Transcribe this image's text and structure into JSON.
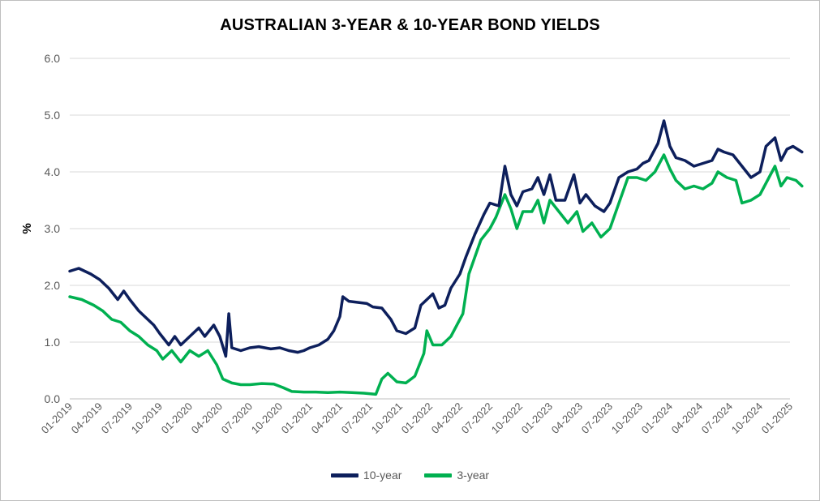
{
  "chart_data": {
    "type": "line",
    "title": "AUSTRALIAN 3-YEAR & 10-YEAR BOND YIELDS",
    "xlabel": "",
    "ylabel": "%",
    "ylim": [
      0,
      6
    ],
    "yticks": [
      "0.0",
      "1.0",
      "2.0",
      "3.0",
      "4.0",
      "5.0",
      "6.0"
    ],
    "xticks": [
      "01-2019",
      "04-2019",
      "07-2019",
      "10-2019",
      "01-2020",
      "04-2020",
      "07-2020",
      "10-2020",
      "01-2021",
      "04-2021",
      "07-2021",
      "10-2021",
      "01-2022",
      "04-2022",
      "07-2022",
      "10-2022",
      "01-2023",
      "04-2023",
      "07-2023",
      "10-2023",
      "01-2024",
      "04-2024",
      "07-2024",
      "10-2024",
      "01-2025"
    ],
    "grid": true,
    "legend_position": "bottom",
    "x_index_note": "",
    "series": [
      {
        "name": "10-year",
        "color": "#0d1f5c",
        "points": [
          [
            0,
            2.25
          ],
          [
            0.3,
            2.3
          ],
          [
            0.7,
            2.2
          ],
          [
            1,
            2.1
          ],
          [
            1.3,
            1.95
          ],
          [
            1.6,
            1.75
          ],
          [
            1.8,
            1.9
          ],
          [
            2,
            1.75
          ],
          [
            2.3,
            1.55
          ],
          [
            2.6,
            1.4
          ],
          [
            2.8,
            1.3
          ],
          [
            3,
            1.15
          ],
          [
            3.3,
            0.95
          ],
          [
            3.5,
            1.1
          ],
          [
            3.7,
            0.95
          ],
          [
            4,
            1.1
          ],
          [
            4.3,
            1.25
          ],
          [
            4.5,
            1.1
          ],
          [
            4.8,
            1.3
          ],
          [
            5,
            1.1
          ],
          [
            5.2,
            0.75
          ],
          [
            5.3,
            1.5
          ],
          [
            5.4,
            0.9
          ],
          [
            5.7,
            0.85
          ],
          [
            6,
            0.9
          ],
          [
            6.3,
            0.92
          ],
          [
            6.7,
            0.88
          ],
          [
            7,
            0.9
          ],
          [
            7.3,
            0.85
          ],
          [
            7.6,
            0.82
          ],
          [
            7.8,
            0.85
          ],
          [
            8,
            0.9
          ],
          [
            8.3,
            0.95
          ],
          [
            8.6,
            1.05
          ],
          [
            8.8,
            1.2
          ],
          [
            9,
            1.45
          ],
          [
            9.1,
            1.8
          ],
          [
            9.3,
            1.72
          ],
          [
            9.6,
            1.7
          ],
          [
            9.9,
            1.68
          ],
          [
            10.1,
            1.62
          ],
          [
            10.4,
            1.6
          ],
          [
            10.7,
            1.4
          ],
          [
            10.9,
            1.2
          ],
          [
            11.2,
            1.15
          ],
          [
            11.5,
            1.25
          ],
          [
            11.7,
            1.65
          ],
          [
            11.9,
            1.75
          ],
          [
            12.1,
            1.85
          ],
          [
            12.3,
            1.6
          ],
          [
            12.5,
            1.65
          ],
          [
            12.7,
            1.95
          ],
          [
            13,
            2.2
          ],
          [
            13.2,
            2.5
          ],
          [
            13.5,
            2.9
          ],
          [
            13.8,
            3.25
          ],
          [
            14,
            3.45
          ],
          [
            14.3,
            3.4
          ],
          [
            14.5,
            4.1
          ],
          [
            14.7,
            3.6
          ],
          [
            14.9,
            3.4
          ],
          [
            15.1,
            3.65
          ],
          [
            15.4,
            3.7
          ],
          [
            15.6,
            3.9
          ],
          [
            15.8,
            3.6
          ],
          [
            16,
            3.95
          ],
          [
            16.2,
            3.5
          ],
          [
            16.5,
            3.5
          ],
          [
            16.8,
            3.95
          ],
          [
            17,
            3.45
          ],
          [
            17.2,
            3.6
          ],
          [
            17.5,
            3.4
          ],
          [
            17.8,
            3.3
          ],
          [
            18,
            3.45
          ],
          [
            18.3,
            3.9
          ],
          [
            18.6,
            4.0
          ],
          [
            18.9,
            4.05
          ],
          [
            19.1,
            4.15
          ],
          [
            19.3,
            4.2
          ],
          [
            19.6,
            4.5
          ],
          [
            19.8,
            4.9
          ],
          [
            20,
            4.45
          ],
          [
            20.2,
            4.25
          ],
          [
            20.5,
            4.2
          ],
          [
            20.8,
            4.1
          ],
          [
            21.1,
            4.15
          ],
          [
            21.4,
            4.2
          ],
          [
            21.6,
            4.4
          ],
          [
            21.8,
            4.35
          ],
          [
            22.1,
            4.3
          ],
          [
            22.4,
            4.1
          ],
          [
            22.7,
            3.9
          ],
          [
            23,
            4.0
          ],
          [
            23.2,
            4.45
          ],
          [
            23.5,
            4.6
          ],
          [
            23.7,
            4.2
          ],
          [
            23.9,
            4.4
          ],
          [
            24.1,
            4.45
          ],
          [
            24.4,
            4.35
          ]
        ]
      },
      {
        "name": "3-year",
        "color": "#00b050",
        "points": [
          [
            0,
            1.8
          ],
          [
            0.4,
            1.75
          ],
          [
            0.8,
            1.65
          ],
          [
            1.1,
            1.55
          ],
          [
            1.4,
            1.4
          ],
          [
            1.7,
            1.35
          ],
          [
            2,
            1.2
          ],
          [
            2.3,
            1.1
          ],
          [
            2.6,
            0.95
          ],
          [
            2.9,
            0.85
          ],
          [
            3.1,
            0.7
          ],
          [
            3.4,
            0.85
          ],
          [
            3.7,
            0.65
          ],
          [
            4,
            0.85
          ],
          [
            4.3,
            0.75
          ],
          [
            4.6,
            0.85
          ],
          [
            4.9,
            0.6
          ],
          [
            5.1,
            0.35
          ],
          [
            5.4,
            0.28
          ],
          [
            5.7,
            0.25
          ],
          [
            6,
            0.25
          ],
          [
            6.4,
            0.27
          ],
          [
            6.8,
            0.26
          ],
          [
            7.1,
            0.2
          ],
          [
            7.4,
            0.13
          ],
          [
            7.8,
            0.12
          ],
          [
            8.2,
            0.12
          ],
          [
            8.6,
            0.11
          ],
          [
            9,
            0.12
          ],
          [
            9.4,
            0.11
          ],
          [
            9.8,
            0.1
          ],
          [
            10.2,
            0.08
          ],
          [
            10.4,
            0.35
          ],
          [
            10.6,
            0.45
          ],
          [
            10.9,
            0.3
          ],
          [
            11.2,
            0.28
          ],
          [
            11.5,
            0.4
          ],
          [
            11.8,
            0.8
          ],
          [
            11.9,
            1.2
          ],
          [
            12.1,
            0.95
          ],
          [
            12.4,
            0.95
          ],
          [
            12.7,
            1.1
          ],
          [
            12.9,
            1.3
          ],
          [
            13.1,
            1.5
          ],
          [
            13.3,
            2.2
          ],
          [
            13.5,
            2.5
          ],
          [
            13.7,
            2.8
          ],
          [
            14,
            3.0
          ],
          [
            14.2,
            3.2
          ],
          [
            14.5,
            3.6
          ],
          [
            14.7,
            3.35
          ],
          [
            14.9,
            3.0
          ],
          [
            15.1,
            3.3
          ],
          [
            15.4,
            3.3
          ],
          [
            15.6,
            3.5
          ],
          [
            15.8,
            3.1
          ],
          [
            16,
            3.5
          ],
          [
            16.3,
            3.3
          ],
          [
            16.6,
            3.1
          ],
          [
            16.9,
            3.3
          ],
          [
            17.1,
            2.95
          ],
          [
            17.4,
            3.1
          ],
          [
            17.7,
            2.85
          ],
          [
            18,
            3.0
          ],
          [
            18.3,
            3.45
          ],
          [
            18.6,
            3.9
          ],
          [
            18.9,
            3.9
          ],
          [
            19.2,
            3.85
          ],
          [
            19.5,
            4.0
          ],
          [
            19.8,
            4.3
          ],
          [
            20,
            4.05
          ],
          [
            20.2,
            3.85
          ],
          [
            20.5,
            3.7
          ],
          [
            20.8,
            3.75
          ],
          [
            21.1,
            3.7
          ],
          [
            21.4,
            3.8
          ],
          [
            21.6,
            4.0
          ],
          [
            21.9,
            3.9
          ],
          [
            22.2,
            3.85
          ],
          [
            22.4,
            3.45
          ],
          [
            22.7,
            3.5
          ],
          [
            23,
            3.6
          ],
          [
            23.3,
            3.9
          ],
          [
            23.5,
            4.1
          ],
          [
            23.7,
            3.75
          ],
          [
            23.9,
            3.9
          ],
          [
            24.2,
            3.85
          ],
          [
            24.4,
            3.75
          ]
        ]
      }
    ]
  }
}
